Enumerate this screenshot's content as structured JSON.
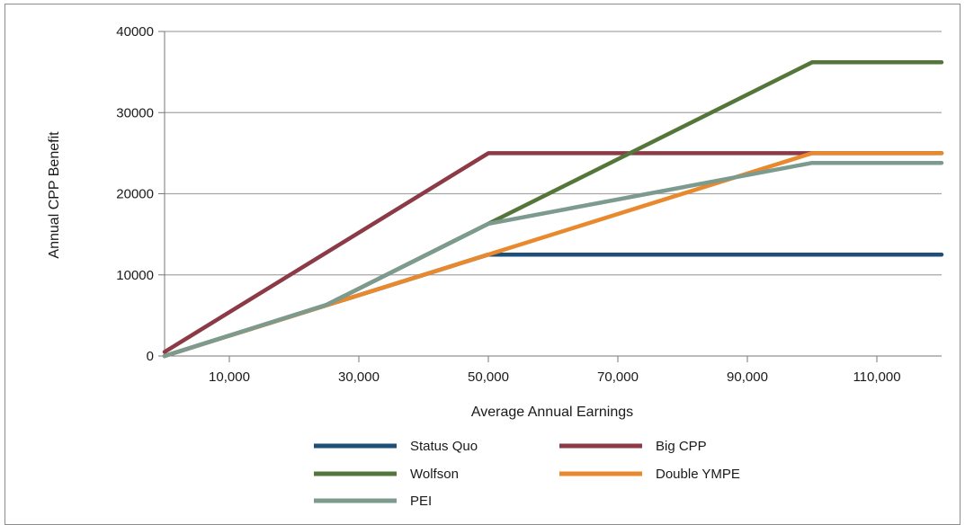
{
  "chart_data": {
    "type": "line",
    "title": "",
    "xlabel": "Average Annual Earnings",
    "ylabel": "Annual CPP Benefit",
    "xlim": [
      0,
      120000
    ],
    "ylim": [
      0,
      40000
    ],
    "x_ticks": [
      10000,
      30000,
      50000,
      70000,
      90000,
      110000
    ],
    "x_tick_labels": [
      "10,000",
      "30,000",
      "50,000",
      "70,000",
      "90,000",
      "110,000"
    ],
    "y_ticks": [
      0,
      10000,
      20000,
      30000,
      40000
    ],
    "y_tick_labels": [
      "0",
      "10000",
      "20000",
      "30000",
      "40000"
    ],
    "grid": "horizontal",
    "legend_position": "bottom",
    "series": [
      {
        "name": "Status Quo",
        "color": "#1f4e79",
        "points": [
          [
            0,
            0
          ],
          [
            50000,
            12500
          ],
          [
            120000,
            12500
          ]
        ]
      },
      {
        "name": "Big CPP",
        "color": "#8b3a46",
        "points": [
          [
            0,
            500
          ],
          [
            50000,
            25000
          ],
          [
            120000,
            25000
          ]
        ]
      },
      {
        "name": "Wolfson",
        "color": "#55763a",
        "points": [
          [
            0,
            0
          ],
          [
            25000,
            6300
          ],
          [
            50000,
            16300
          ],
          [
            100000,
            36200
          ],
          [
            120000,
            36200
          ]
        ]
      },
      {
        "name": "Double YMPE",
        "color": "#e8892e",
        "points": [
          [
            0,
            0
          ],
          [
            100000,
            25000
          ],
          [
            120000,
            25000
          ]
        ]
      },
      {
        "name": "PEI",
        "color": "#7d9a8e",
        "points": [
          [
            0,
            0
          ],
          [
            25000,
            6300
          ],
          [
            50000,
            16300
          ],
          [
            100000,
            23800
          ],
          [
            120000,
            23800
          ]
        ]
      }
    ]
  }
}
